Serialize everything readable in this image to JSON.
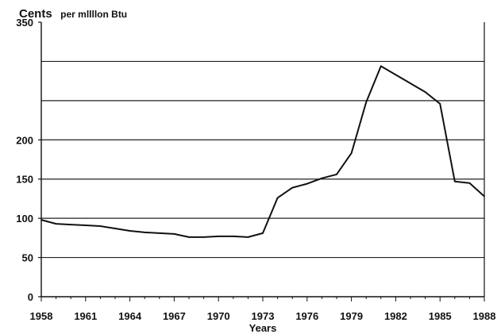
{
  "chart_data": {
    "type": "line",
    "title": "",
    "unit_label_main": "Cents",
    "unit_label_rest": "per mllllon Btu",
    "xlabel": "Years",
    "ylabel": "",
    "xlim": [
      1958,
      1988
    ],
    "ylim": [
      0,
      350
    ],
    "y_ticks": [
      0,
      50,
      100,
      150,
      200,
      350
    ],
    "y_gridlines": [
      50,
      100,
      150,
      200,
      250,
      300
    ],
    "x_ticks": [
      1958,
      1961,
      1964,
      1967,
      1970,
      1973,
      1976,
      1979,
      1982,
      1985,
      1988
    ],
    "x_tick_labels": [
      "1958",
      "1961",
      "1964",
      "1967",
      "1970",
      "1973",
      "1976",
      "1979",
      "1982",
      "1985",
      "1988"
    ],
    "grid": "horizontal",
    "legend": "none",
    "line_color": "#111111",
    "series": [
      {
        "x": [
          1958,
          1959,
          1960,
          1961,
          1962,
          1963,
          1964,
          1965,
          1966,
          1967,
          1968,
          1969,
          1970,
          1971,
          1972,
          1973,
          1974,
          1975,
          1976,
          1977,
          1978,
          1979,
          1980,
          1981,
          1982,
          1983,
          1984,
          1985,
          1986,
          1987,
          1988
        ],
        "values": [
          98,
          93,
          92,
          91,
          90,
          87,
          84,
          82,
          81,
          80,
          76,
          76,
          77,
          77,
          76,
          81,
          126,
          139,
          144,
          151,
          156,
          183,
          248,
          294,
          283,
          272,
          261,
          246,
          147,
          145,
          128
        ]
      }
    ]
  }
}
